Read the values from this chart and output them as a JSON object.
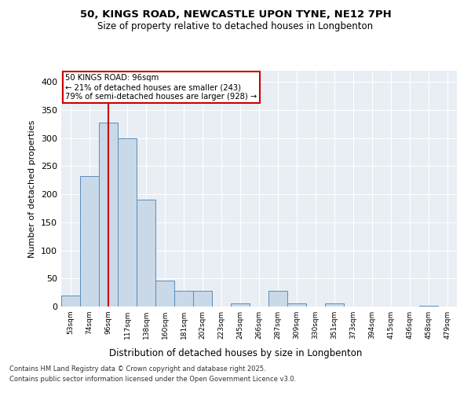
{
  "title_line1": "50, KINGS ROAD, NEWCASTLE UPON TYNE, NE12 7PH",
  "title_line2": "Size of property relative to detached houses in Longbenton",
  "xlabel": "Distribution of detached houses by size in Longbenton",
  "ylabel": "Number of detached properties",
  "categories": [
    "53sqm",
    "74sqm",
    "96sqm",
    "117sqm",
    "138sqm",
    "160sqm",
    "181sqm",
    "202sqm",
    "223sqm",
    "245sqm",
    "266sqm",
    "287sqm",
    "309sqm",
    "330sqm",
    "351sqm",
    "373sqm",
    "394sqm",
    "415sqm",
    "436sqm",
    "458sqm",
    "479sqm"
  ],
  "values": [
    20,
    232,
    328,
    300,
    190,
    46,
    28,
    28,
    0,
    6,
    0,
    28,
    5,
    0,
    5,
    0,
    0,
    0,
    0,
    2,
    0
  ],
  "bar_color": "#c9d9e8",
  "bar_edge_color": "#5b8db8",
  "highlight_index": 2,
  "highlight_line_color": "#cc0000",
  "annotation_text": "50 KINGS ROAD: 96sqm\n← 21% of detached houses are smaller (243)\n79% of semi-detached houses are larger (928) →",
  "annotation_box_color": "#cc0000",
  "annotation_text_color": "#000000",
  "ylim": [
    0,
    420
  ],
  "yticks": [
    0,
    50,
    100,
    150,
    200,
    250,
    300,
    350,
    400
  ],
  "background_color": "#e8eef4",
  "footer_line1": "Contains HM Land Registry data © Crown copyright and database right 2025.",
  "footer_line2": "Contains public sector information licensed under the Open Government Licence v3.0."
}
